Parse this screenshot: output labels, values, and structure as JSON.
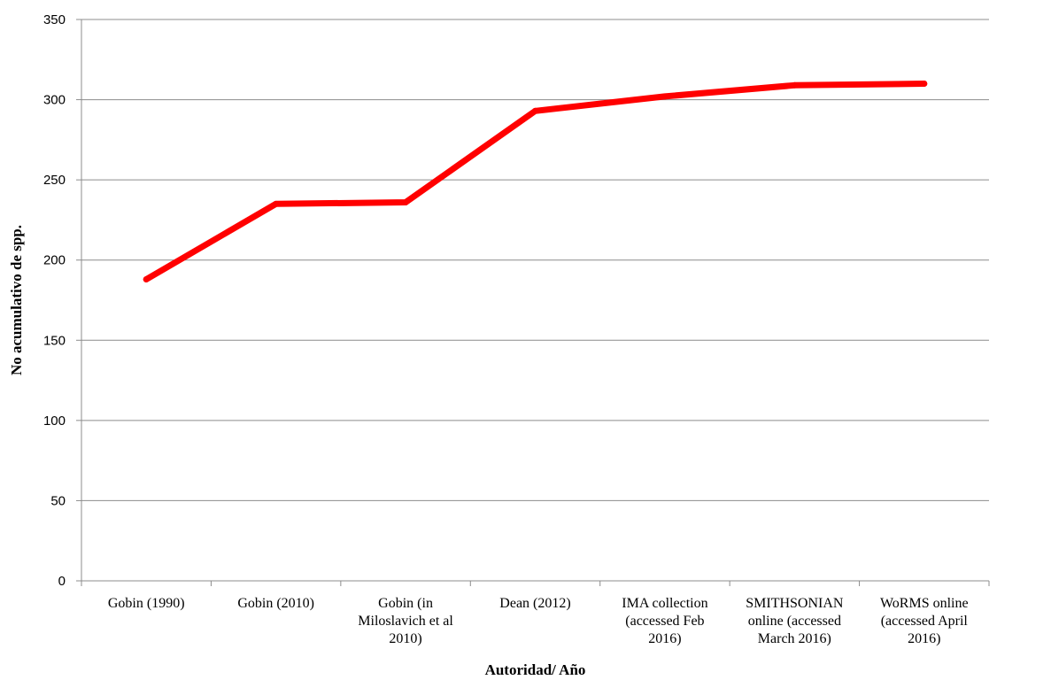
{
  "chart_data": {
    "type": "line",
    "title": "",
    "xlabel": "Autoridad/ Año",
    "ylabel": "No acumulativo de spp.",
    "ylim": [
      0,
      350
    ],
    "yticks": [
      0,
      50,
      100,
      150,
      200,
      250,
      300,
      350
    ],
    "grid": true,
    "legend": "none",
    "categories": [
      "Gobin (1990)",
      "Gobin (2010)",
      "Gobin (in Miloslavich et al 2010)",
      "Dean (2012)",
      "IMA collection (accessed Feb 2016)",
      "SMITHSONIAN online (accessed March 2016)",
      "WoRMS online (accessed  April 2016)"
    ],
    "category_lines": [
      [
        "Gobin (1990)"
      ],
      [
        "Gobin (2010)"
      ],
      [
        "Gobin (in",
        "Miloslavich et al",
        "2010)"
      ],
      [
        "Dean (2012)"
      ],
      [
        "IMA collection",
        "(accessed Feb",
        "2016)"
      ],
      [
        "SMITHSONIAN",
        "online (accessed",
        "March 2016)"
      ],
      [
        "WoRMS online",
        "(accessed  April",
        "2016)"
      ]
    ],
    "series": [
      {
        "values": [
          188,
          235,
          236,
          293,
          302,
          309,
          310
        ]
      }
    ],
    "colors": {
      "line": "#ff0000",
      "grid": "#8c8c8c",
      "axis": "#8c8c8c"
    }
  }
}
